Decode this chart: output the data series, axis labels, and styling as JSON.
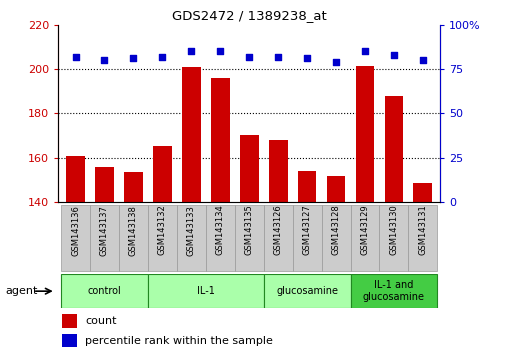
{
  "title": "GDS2472 / 1389238_at",
  "samples": [
    "GSM143136",
    "GSM143137",
    "GSM143138",
    "GSM143132",
    "GSM143133",
    "GSM143134",
    "GSM143135",
    "GSM143126",
    "GSM143127",
    "GSM143128",
    "GSM143129",
    "GSM143130",
    "GSM143131"
  ],
  "counts": [
    160.5,
    155.5,
    153.5,
    165.0,
    201.0,
    196.0,
    170.0,
    168.0,
    154.0,
    151.5,
    201.5,
    188.0,
    148.5
  ],
  "percentiles": [
    82,
    80,
    81,
    82,
    85,
    85,
    82,
    82,
    81,
    79,
    85,
    83,
    80
  ],
  "groups": [
    {
      "label": "control",
      "start": 0,
      "end": 3
    },
    {
      "label": "IL-1",
      "start": 3,
      "end": 7
    },
    {
      "label": "glucosamine",
      "start": 7,
      "end": 10
    },
    {
      "label": "IL-1 and\nglucosamine",
      "start": 10,
      "end": 13
    }
  ],
  "group_colors": [
    "#aaffaa",
    "#aaffaa",
    "#aaffaa",
    "#44cc44"
  ],
  "group_edge_color": "#228822",
  "bar_color": "#cc0000",
  "dot_color": "#0000cc",
  "ylim_left": [
    140,
    220
  ],
  "ylim_right": [
    0,
    100
  ],
  "yticks_left": [
    140,
    160,
    180,
    200,
    220
  ],
  "yticks_right": [
    0,
    25,
    50,
    75,
    100
  ],
  "grid_lines": [
    160,
    180,
    200
  ],
  "tick_label_color_left": "#cc0000",
  "tick_label_color_right": "#0000cc",
  "sample_box_color": "#cccccc",
  "sample_box_edge": "#999999"
}
